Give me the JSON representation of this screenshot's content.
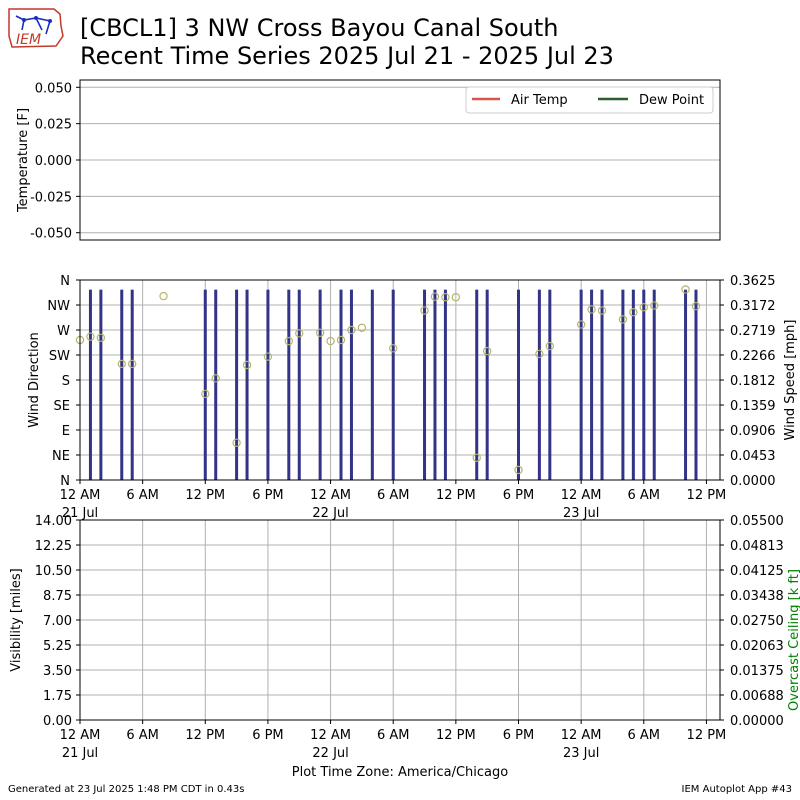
{
  "header": {
    "logo_text": "IEM",
    "title_line1": "[CBCL1] 3 NW Cross Bayou Canal South",
    "title_line2": "Recent Time Series 2025 Jul 21 - 2025 Jul 23"
  },
  "footer": {
    "generated": "Generated at 23 Jul 2025 1:48 PM CDT in 0.43s",
    "app": "IEM Autoplot App #43"
  },
  "time_axis": {
    "tick_labels": [
      "12 AM",
      "6 AM",
      "12 PM",
      "6 PM",
      "12 AM",
      "6 AM",
      "12 PM",
      "6 PM",
      "12 AM",
      "6 AM",
      "12 PM"
    ],
    "tick_hours": [
      0,
      6,
      12,
      18,
      24,
      30,
      36,
      42,
      48,
      54,
      60
    ],
    "date_labels": [
      {
        "hour": 0,
        "text": "21 Jul"
      },
      {
        "hour": 24,
        "text": "22 Jul"
      },
      {
        "hour": 48,
        "text": "23 Jul"
      }
    ],
    "xlabel": "Plot Time Zone: America/Chicago"
  },
  "colors": {
    "air_temp": "#d9534f",
    "dew_point": "#2e5e2e",
    "wind_bar": "#333388",
    "direction_marker": "#b5b56a",
    "ceiling_label": "#008000",
    "grid": "#b0b0b0"
  },
  "chart_data": [
    {
      "type": "line",
      "ylabel": "Temperature [F]",
      "ylim": [
        -0.055,
        0.055
      ],
      "yticks": [
        "0.050",
        "0.025",
        "0.000",
        "-0.025",
        "-0.050"
      ],
      "ytick_values": [
        0.05,
        0.025,
        0.0,
        -0.025,
        -0.05
      ],
      "legend_position": "top-right",
      "series": [
        {
          "name": "Air Temp",
          "values": []
        },
        {
          "name": "Dew Point",
          "values": []
        }
      ],
      "grid": true
    },
    {
      "type": "bar",
      "ylabel": "Wind Direction",
      "y2label": "Wind Speed [mph]",
      "y_ticks": [
        "N",
        "NE",
        "E",
        "SE",
        "S",
        "SW",
        "W",
        "NW",
        "N"
      ],
      "y_tick_degrees": [
        0,
        45,
        90,
        135,
        180,
        225,
        270,
        315,
        360
      ],
      "y2_ticks": [
        "0.0000",
        "0.0453",
        "0.0906",
        "0.1359",
        "0.1812",
        "0.2266",
        "0.2719",
        "0.3172",
        "0.3625"
      ],
      "y2_tick_values": [
        0.0,
        0.0453,
        0.0906,
        0.1359,
        0.1812,
        0.2266,
        0.2719,
        0.3172,
        0.3625
      ],
      "ylim": [
        0,
        360
      ],
      "y2lim": [
        0,
        0.3625
      ],
      "xlim_hours": [
        0,
        61
      ],
      "wind_speed_mph": [
        [
          1,
          0.345
        ],
        [
          2,
          0.345
        ],
        [
          4,
          0.345
        ],
        [
          5,
          0.345
        ],
        [
          12,
          0.345
        ],
        [
          13,
          0.345
        ],
        [
          15,
          0.345
        ],
        [
          16,
          0.345
        ],
        [
          18,
          0.345
        ],
        [
          20,
          0.345
        ],
        [
          21,
          0.345
        ],
        [
          23,
          0.345
        ],
        [
          25,
          0.345
        ],
        [
          26,
          0.345
        ],
        [
          28,
          0.345
        ],
        [
          30,
          0.345
        ],
        [
          33,
          0.345
        ],
        [
          34,
          0.345
        ],
        [
          35,
          0.345
        ],
        [
          38,
          0.345
        ],
        [
          39,
          0.345
        ],
        [
          42,
          0.345
        ],
        [
          44,
          0.345
        ],
        [
          45,
          0.345
        ],
        [
          48,
          0.345
        ],
        [
          49,
          0.345
        ],
        [
          50,
          0.345
        ],
        [
          52,
          0.345
        ],
        [
          53,
          0.345
        ],
        [
          54,
          0.345
        ],
        [
          55,
          0.345
        ],
        [
          58,
          0.345
        ],
        [
          59,
          0.345
        ]
      ],
      "wind_direction_deg": [
        [
          0,
          252
        ],
        [
          1,
          258
        ],
        [
          2,
          256
        ],
        [
          4,
          209
        ],
        [
          5,
          209
        ],
        [
          8,
          331
        ],
        [
          12,
          155
        ],
        [
          13,
          183
        ],
        [
          15,
          67
        ],
        [
          16,
          207
        ],
        [
          18,
          222
        ],
        [
          20,
          250
        ],
        [
          21,
          264
        ],
        [
          23,
          265
        ],
        [
          24,
          250
        ],
        [
          25,
          252
        ],
        [
          26,
          270
        ],
        [
          27,
          274
        ],
        [
          30,
          237
        ],
        [
          33,
          305
        ],
        [
          34,
          330
        ],
        [
          35,
          329
        ],
        [
          36,
          329
        ],
        [
          38,
          40
        ],
        [
          39,
          232
        ],
        [
          42,
          18
        ],
        [
          44,
          227
        ],
        [
          45,
          241
        ],
        [
          48,
          280
        ],
        [
          49,
          307
        ],
        [
          50,
          305
        ],
        [
          52,
          289
        ],
        [
          53,
          302
        ],
        [
          54,
          311
        ],
        [
          55,
          314
        ],
        [
          58,
          343
        ],
        [
          59,
          313
        ]
      ],
      "grid": true
    },
    {
      "type": "line",
      "ylabel": "Visibility [miles]",
      "y2label": "Overcast Ceiling [k ft]",
      "ylim": [
        0,
        14
      ],
      "y2lim": [
        0,
        0.055
      ],
      "yticks": [
        "0.00",
        "1.75",
        "3.50",
        "5.25",
        "7.00",
        "8.75",
        "10.50",
        "12.25",
        "14.00"
      ],
      "ytick_values": [
        0,
        1.75,
        3.5,
        5.25,
        7.0,
        8.75,
        10.5,
        12.25,
        14.0
      ],
      "y2ticks": [
        "0.00000",
        "0.00688",
        "0.01375",
        "0.02063",
        "0.02750",
        "0.03438",
        "0.04125",
        "0.04813",
        "0.05500"
      ],
      "y2tick_values": [
        0,
        0.006875,
        0.01375,
        0.020625,
        0.0275,
        0.034375,
        0.04125,
        0.048125,
        0.055
      ],
      "series": [],
      "grid": true
    }
  ]
}
